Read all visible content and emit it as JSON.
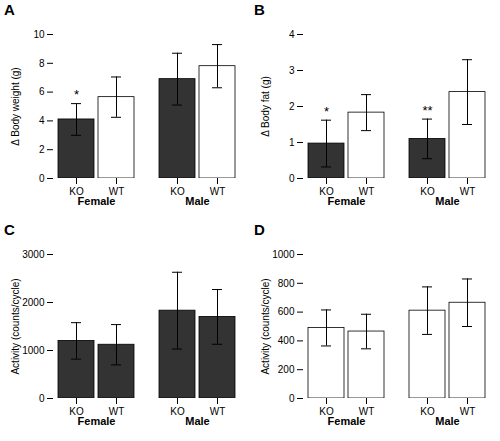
{
  "chart_data": [
    {
      "type": "bar",
      "title": "A",
      "ylabel": "Δ Body weight (g)",
      "categories": [
        "Female",
        "Male"
      ],
      "series": [
        {
          "name": "KO",
          "values": [
            4.1,
            6.9
          ],
          "errors": [
            1.1,
            1.8
          ],
          "colors": [
            "#333333",
            "#333333"
          ]
        },
        {
          "name": "WT",
          "values": [
            5.65,
            7.8
          ],
          "errors": [
            1.4,
            1.5
          ],
          "colors": [
            "#ffffff",
            "#ffffff"
          ]
        }
      ],
      "ylim": [
        0,
        10
      ],
      "yticks": [
        0,
        2,
        4,
        6,
        8,
        10
      ],
      "grid": false,
      "annotations": [
        {
          "series": "KO",
          "category": "Female",
          "text": "*"
        }
      ]
    },
    {
      "type": "bar",
      "title": "B",
      "ylabel": "Δ Body fat (g)",
      "categories": [
        "Female",
        "Male"
      ],
      "series": [
        {
          "name": "KO",
          "values": [
            0.97,
            1.1
          ],
          "errors": [
            0.65,
            0.55
          ],
          "colors": [
            "#333333",
            "#333333"
          ]
        },
        {
          "name": "WT",
          "values": [
            1.83,
            2.4
          ],
          "errors": [
            0.5,
            0.9
          ],
          "colors": [
            "#ffffff",
            "#ffffff"
          ]
        }
      ],
      "ylim": [
        0,
        4
      ],
      "yticks": [
        0,
        1,
        2,
        3,
        4
      ],
      "grid": false,
      "annotations": [
        {
          "series": "KO",
          "category": "Female",
          "text": "*"
        },
        {
          "series": "KO",
          "category": "Male",
          "text": "**"
        }
      ]
    },
    {
      "type": "bar",
      "title": "C",
      "ylabel": "Activity (counts/cycle)",
      "categories": [
        "Female",
        "Male"
      ],
      "series": [
        {
          "name": "KO",
          "values": [
            1200,
            1830
          ],
          "errors": [
            380,
            800
          ],
          "colors": [
            "#333333",
            "#333333"
          ]
        },
        {
          "name": "WT",
          "values": [
            1120,
            1700
          ],
          "errors": [
            420,
            570
          ],
          "colors": [
            "#333333",
            "#333333"
          ]
        }
      ],
      "ylim": [
        0,
        3000
      ],
      "yticks": [
        0,
        1000,
        2000,
        3000
      ],
      "grid": false,
      "annotations": []
    },
    {
      "type": "bar",
      "title": "D",
      "ylabel": "Activity (counts/cycle)",
      "categories": [
        "Female",
        "Male"
      ],
      "series": [
        {
          "name": "KO",
          "values": [
            490,
            610
          ],
          "errors": [
            125,
            165
          ],
          "colors": [
            "#ffffff",
            "#ffffff"
          ]
        },
        {
          "name": "WT",
          "values": [
            465,
            665
          ],
          "errors": [
            120,
            165
          ],
          "colors": [
            "#ffffff",
            "#ffffff"
          ]
        }
      ],
      "ylim": [
        0,
        1000
      ],
      "yticks": [
        0,
        200,
        400,
        600,
        800,
        1000
      ],
      "grid": false,
      "annotations": []
    }
  ]
}
